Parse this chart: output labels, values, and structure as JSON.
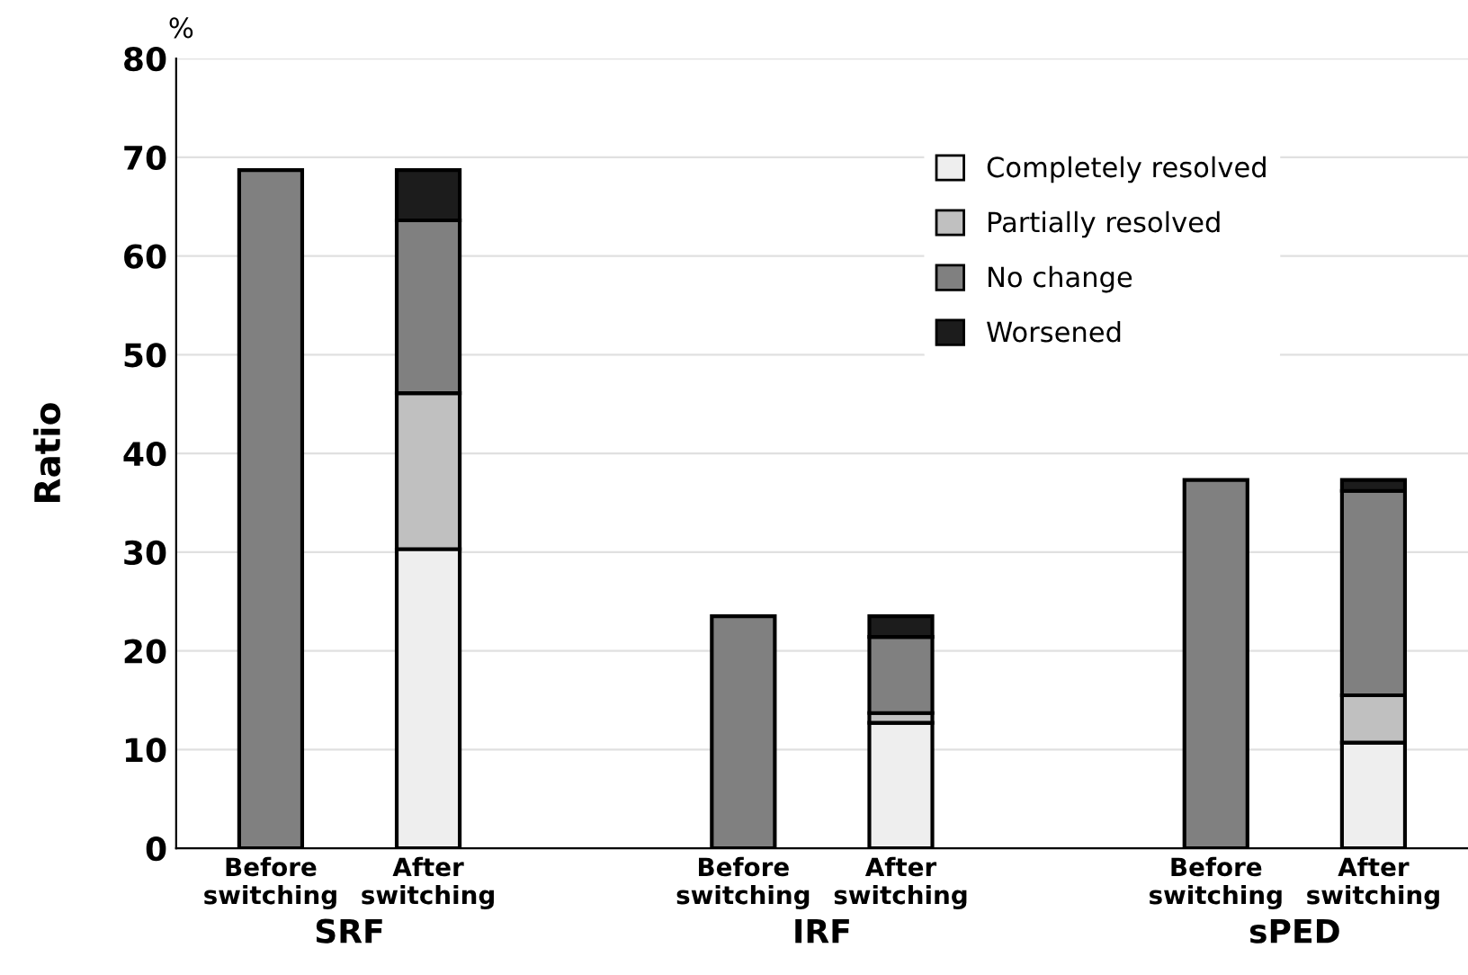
{
  "chart_data": {
    "type": "bar",
    "stacked": true,
    "ylabel": "Ratio",
    "categories": [
      "Before switching",
      "After switching",
      null,
      "Before switching",
      "After switching",
      null,
      "Before switching",
      "After switching"
    ],
    "series": [
      {
        "name": "Completely resolved",
        "color": "#eeeeee",
        "values": [
          null,
          30.3,
          null,
          null,
          12.7,
          null,
          null,
          10.7
        ]
      },
      {
        "name": "Partially resolved",
        "color": "#c0c0c0",
        "values": [
          null,
          15.8,
          null,
          null,
          1.0,
          null,
          null,
          4.8
        ]
      },
      {
        "name": "No change",
        "color": "#808080",
        "values": [
          68.7,
          17.5,
          null,
          23.5,
          7.7,
          null,
          37.3,
          20.7
        ]
      },
      {
        "name": "Worsened",
        "color": "#1c1c1c",
        "values": [
          null,
          5.1,
          null,
          null,
          2.1,
          null,
          null,
          1.1
        ]
      }
    ],
    "annotations": [
      "%",
      "SRF",
      "IRF",
      "sPED"
    ],
    "ylim": [
      0,
      80
    ],
    "yticks": [
      0,
      10,
      20,
      30,
      40,
      50,
      60,
      70,
      80
    ],
    "grid": "y",
    "legend": "top right"
  }
}
